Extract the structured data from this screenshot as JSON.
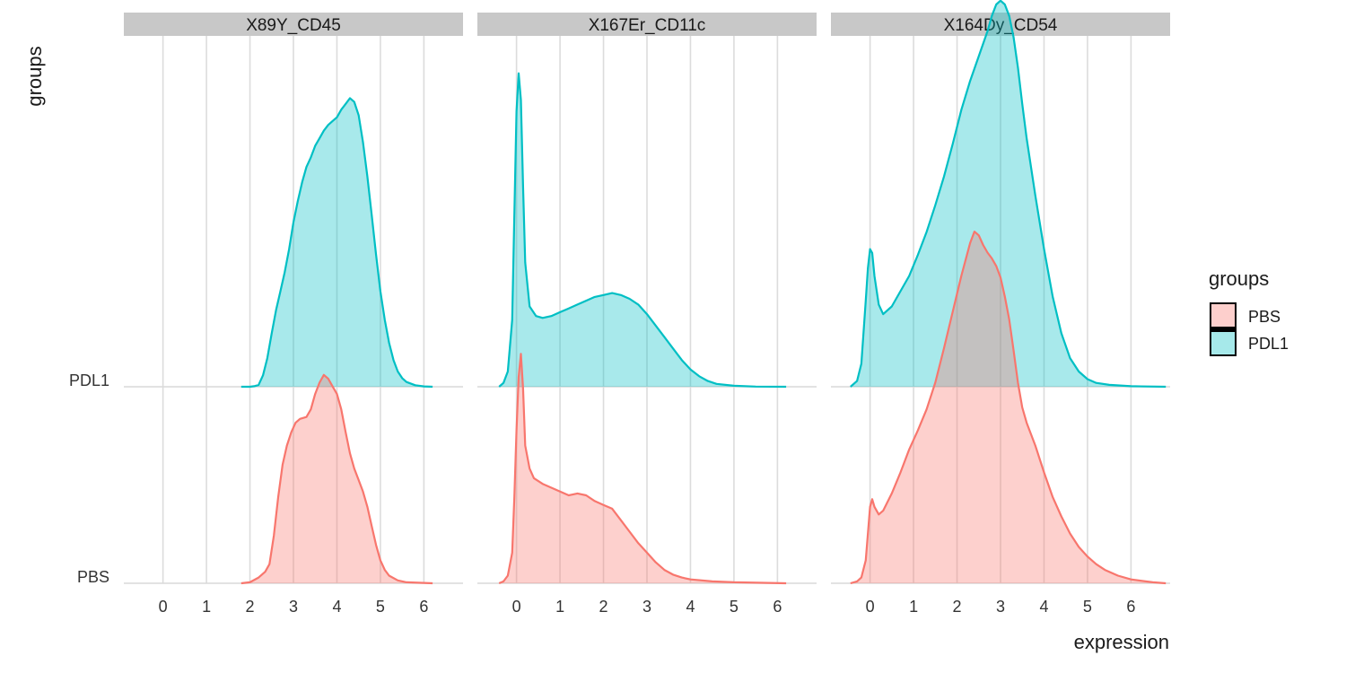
{
  "chart_data": {
    "type": "area",
    "subtype": "ridgeline-density",
    "xlabel": "expression",
    "ylabel": "groups",
    "x_ticks": [
      0,
      1,
      2,
      3,
      4,
      5,
      6
    ],
    "y_categories": [
      "PBS",
      "PDL1"
    ],
    "grid": true,
    "legend": {
      "title": "groups",
      "position": "right",
      "entries": [
        {
          "name": "PBS",
          "color": "#F8766D"
        },
        {
          "name": "PDL1",
          "color": "#00BFC4"
        }
      ]
    },
    "colors": {
      "PBS": "#F8766D",
      "PDL1": "#00BFC4"
    },
    "panels": [
      {
        "title": "X89Y_CD45",
        "xlim": [
          -0.9,
          6.9
        ],
        "series": [
          {
            "name": "PBS",
            "points": [
              [
                1.8,
                0
              ],
              [
                2.0,
                0.005
              ],
              [
                2.2,
                0.03
              ],
              [
                2.35,
                0.06
              ],
              [
                2.45,
                0.1
              ],
              [
                2.55,
                0.25
              ],
              [
                2.65,
                0.45
              ],
              [
                2.75,
                0.62
              ],
              [
                2.85,
                0.72
              ],
              [
                2.95,
                0.79
              ],
              [
                3.05,
                0.84
              ],
              [
                3.15,
                0.86
              ],
              [
                3.3,
                0.87
              ],
              [
                3.4,
                0.91
              ],
              [
                3.5,
                0.99
              ],
              [
                3.6,
                1.05
              ],
              [
                3.7,
                1.09
              ],
              [
                3.8,
                1.07
              ],
              [
                3.9,
                1.03
              ],
              [
                4.0,
                0.99
              ],
              [
                4.1,
                0.91
              ],
              [
                4.2,
                0.79
              ],
              [
                4.3,
                0.68
              ],
              [
                4.4,
                0.6
              ],
              [
                4.5,
                0.54
              ],
              [
                4.6,
                0.48
              ],
              [
                4.7,
                0.4
              ],
              [
                4.8,
                0.3
              ],
              [
                4.9,
                0.2
              ],
              [
                5.0,
                0.12
              ],
              [
                5.1,
                0.07
              ],
              [
                5.2,
                0.04
              ],
              [
                5.4,
                0.015
              ],
              [
                5.6,
                0.005
              ],
              [
                6.2,
                0
              ]
            ]
          },
          {
            "name": "PDL1",
            "points": [
              [
                1.8,
                0
              ],
              [
                2.0,
                0
              ],
              [
                2.1,
                0.003
              ],
              [
                2.2,
                0.01
              ],
              [
                2.3,
                0.06
              ],
              [
                2.4,
                0.15
              ],
              [
                2.5,
                0.28
              ],
              [
                2.6,
                0.4
              ],
              [
                2.7,
                0.5
              ],
              [
                2.8,
                0.6
              ],
              [
                2.9,
                0.72
              ],
              [
                3.0,
                0.86
              ],
              [
                3.1,
                0.97
              ],
              [
                3.2,
                1.07
              ],
              [
                3.3,
                1.15
              ],
              [
                3.4,
                1.2
              ],
              [
                3.5,
                1.26
              ],
              [
                3.6,
                1.3
              ],
              [
                3.7,
                1.34
              ],
              [
                3.8,
                1.37
              ],
              [
                3.9,
                1.39
              ],
              [
                4.0,
                1.41
              ],
              [
                4.1,
                1.45
              ],
              [
                4.2,
                1.48
              ],
              [
                4.3,
                1.51
              ],
              [
                4.4,
                1.49
              ],
              [
                4.5,
                1.42
              ],
              [
                4.6,
                1.28
              ],
              [
                4.7,
                1.1
              ],
              [
                4.8,
                0.9
              ],
              [
                4.9,
                0.69
              ],
              [
                5.0,
                0.5
              ],
              [
                5.1,
                0.35
              ],
              [
                5.2,
                0.23
              ],
              [
                5.3,
                0.14
              ],
              [
                5.4,
                0.08
              ],
              [
                5.5,
                0.045
              ],
              [
                5.6,
                0.025
              ],
              [
                5.8,
                0.008
              ],
              [
                6.0,
                0.002
              ],
              [
                6.2,
                0
              ]
            ]
          }
        ]
      },
      {
        "title": "X167Er_CD11c",
        "xlim": [
          -0.9,
          6.9
        ],
        "series": [
          {
            "name": "PBS",
            "points": [
              [
                -0.4,
                0
              ],
              [
                -0.3,
                0.01
              ],
              [
                -0.2,
                0.04
              ],
              [
                -0.1,
                0.16
              ],
              [
                -0.05,
                0.45
              ],
              [
                0.0,
                0.8
              ],
              [
                0.05,
                1.08
              ],
              [
                0.1,
                1.2
              ],
              [
                0.15,
                1.02
              ],
              [
                0.2,
                0.72
              ],
              [
                0.3,
                0.6
              ],
              [
                0.4,
                0.55
              ],
              [
                0.6,
                0.52
              ],
              [
                0.8,
                0.5
              ],
              [
                1.0,
                0.48
              ],
              [
                1.2,
                0.46
              ],
              [
                1.4,
                0.47
              ],
              [
                1.6,
                0.46
              ],
              [
                1.8,
                0.43
              ],
              [
                2.0,
                0.41
              ],
              [
                2.2,
                0.39
              ],
              [
                2.4,
                0.33
              ],
              [
                2.6,
                0.27
              ],
              [
                2.8,
                0.21
              ],
              [
                3.0,
                0.16
              ],
              [
                3.2,
                0.11
              ],
              [
                3.4,
                0.07
              ],
              [
                3.6,
                0.045
              ],
              [
                3.8,
                0.03
              ],
              [
                4.0,
                0.02
              ],
              [
                4.5,
                0.01
              ],
              [
                5.0,
                0.005
              ],
              [
                6.2,
                0
              ]
            ]
          },
          {
            "name": "PDL1",
            "points": [
              [
                -0.4,
                0
              ],
              [
                -0.3,
                0.02
              ],
              [
                -0.2,
                0.08
              ],
              [
                -0.1,
                0.35
              ],
              [
                -0.05,
                0.9
              ],
              [
                0.0,
                1.44
              ],
              [
                0.05,
                1.64
              ],
              [
                0.1,
                1.5
              ],
              [
                0.15,
                1.05
              ],
              [
                0.2,
                0.65
              ],
              [
                0.3,
                0.42
              ],
              [
                0.45,
                0.37
              ],
              [
                0.6,
                0.36
              ],
              [
                0.8,
                0.37
              ],
              [
                1.0,
                0.39
              ],
              [
                1.2,
                0.41
              ],
              [
                1.4,
                0.43
              ],
              [
                1.6,
                0.45
              ],
              [
                1.8,
                0.47
              ],
              [
                2.0,
                0.48
              ],
              [
                2.2,
                0.49
              ],
              [
                2.4,
                0.48
              ],
              [
                2.6,
                0.46
              ],
              [
                2.8,
                0.43
              ],
              [
                3.0,
                0.38
              ],
              [
                3.2,
                0.32
              ],
              [
                3.4,
                0.26
              ],
              [
                3.6,
                0.2
              ],
              [
                3.8,
                0.14
              ],
              [
                4.0,
                0.09
              ],
              [
                4.2,
                0.055
              ],
              [
                4.4,
                0.03
              ],
              [
                4.6,
                0.015
              ],
              [
                5.0,
                0.005
              ],
              [
                5.5,
                0.001
              ],
              [
                6.2,
                0
              ]
            ]
          }
        ]
      },
      {
        "title": "X164Dy_CD54",
        "xlim": [
          -0.9,
          6.9
        ],
        "series": [
          {
            "name": "PBS",
            "points": [
              [
                -0.45,
                0
              ],
              [
                -0.3,
                0.01
              ],
              [
                -0.2,
                0.03
              ],
              [
                -0.1,
                0.12
              ],
              [
                -0.05,
                0.26
              ],
              [
                0.0,
                0.4
              ],
              [
                0.05,
                0.44
              ],
              [
                0.1,
                0.4
              ],
              [
                0.2,
                0.36
              ],
              [
                0.3,
                0.38
              ],
              [
                0.5,
                0.47
              ],
              [
                0.7,
                0.58
              ],
              [
                0.9,
                0.7
              ],
              [
                1.1,
                0.8
              ],
              [
                1.3,
                0.91
              ],
              [
                1.5,
                1.05
              ],
              [
                1.7,
                1.23
              ],
              [
                1.9,
                1.42
              ],
              [
                2.1,
                1.61
              ],
              [
                2.3,
                1.78
              ],
              [
                2.4,
                1.84
              ],
              [
                2.5,
                1.82
              ],
              [
                2.6,
                1.77
              ],
              [
                2.7,
                1.73
              ],
              [
                2.8,
                1.7
              ],
              [
                2.9,
                1.66
              ],
              [
                3.0,
                1.6
              ],
              [
                3.1,
                1.5
              ],
              [
                3.2,
                1.38
              ],
              [
                3.3,
                1.22
              ],
              [
                3.4,
                1.05
              ],
              [
                3.5,
                0.92
              ],
              [
                3.6,
                0.84
              ],
              [
                3.8,
                0.72
              ],
              [
                4.0,
                0.58
              ],
              [
                4.2,
                0.45
              ],
              [
                4.4,
                0.35
              ],
              [
                4.6,
                0.26
              ],
              [
                4.8,
                0.19
              ],
              [
                5.0,
                0.14
              ],
              [
                5.2,
                0.1
              ],
              [
                5.4,
                0.07
              ],
              [
                5.7,
                0.04
              ],
              [
                6.0,
                0.02
              ],
              [
                6.5,
                0.005
              ],
              [
                6.8,
                0
              ]
            ]
          },
          {
            "name": "PDL1",
            "points": [
              [
                -0.45,
                0
              ],
              [
                -0.3,
                0.03
              ],
              [
                -0.2,
                0.12
              ],
              [
                -0.1,
                0.45
              ],
              [
                -0.05,
                0.62
              ],
              [
                0.0,
                0.72
              ],
              [
                0.05,
                0.7
              ],
              [
                0.1,
                0.58
              ],
              [
                0.2,
                0.43
              ],
              [
                0.3,
                0.38
              ],
              [
                0.5,
                0.42
              ],
              [
                0.7,
                0.5
              ],
              [
                0.9,
                0.58
              ],
              [
                1.1,
                0.69
              ],
              [
                1.3,
                0.81
              ],
              [
                1.5,
                0.95
              ],
              [
                1.7,
                1.1
              ],
              [
                1.9,
                1.27
              ],
              [
                2.1,
                1.45
              ],
              [
                2.3,
                1.6
              ],
              [
                2.5,
                1.73
              ],
              [
                2.7,
                1.86
              ],
              [
                2.8,
                1.94
              ],
              [
                2.9,
                2.0
              ],
              [
                3.0,
                2.02
              ],
              [
                3.1,
                2.0
              ],
              [
                3.2,
                1.94
              ],
              [
                3.3,
                1.83
              ],
              [
                3.4,
                1.67
              ],
              [
                3.5,
                1.48
              ],
              [
                3.6,
                1.3
              ],
              [
                3.8,
                1.0
              ],
              [
                4.0,
                0.72
              ],
              [
                4.2,
                0.47
              ],
              [
                4.4,
                0.28
              ],
              [
                4.6,
                0.15
              ],
              [
                4.8,
                0.08
              ],
              [
                5.0,
                0.04
              ],
              [
                5.2,
                0.02
              ],
              [
                5.5,
                0.01
              ],
              [
                6.0,
                0.003
              ],
              [
                6.8,
                0
              ]
            ]
          }
        ]
      }
    ]
  }
}
